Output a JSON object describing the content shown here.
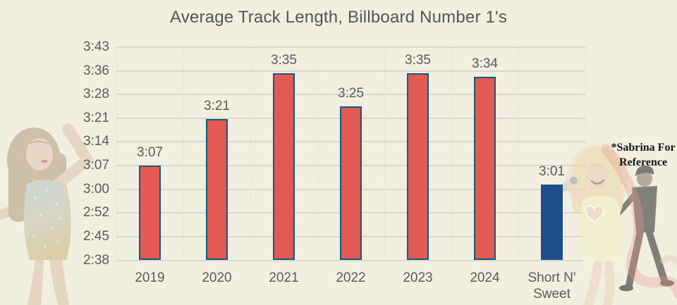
{
  "page": {
    "background_color": "#F0EFE0"
  },
  "chart_data": {
    "type": "bar",
    "title": "Average Track Length, Billboard Number 1's",
    "categories": [
      "2019",
      "2020",
      "2021",
      "2022",
      "2023",
      "2024",
      "Short N' Sweet"
    ],
    "values": [
      "3:07",
      "3:21",
      "3:35",
      "3:25",
      "3:35",
      "3:34",
      "3:01"
    ],
    "values_seconds": [
      187,
      201,
      215,
      205,
      215,
      214,
      181
    ],
    "bar_styles": [
      "default",
      "default",
      "default",
      "default",
      "default",
      "default",
      "highlight"
    ],
    "y_ticks": [
      "3:43",
      "3:36",
      "3:28",
      "3:21",
      "3:14",
      "3:07",
      "3:00",
      "2:52",
      "2:45",
      "2:38"
    ],
    "y_ticks_seconds": [
      223,
      216,
      208,
      201,
      194,
      187,
      180,
      172,
      165,
      158
    ],
    "ylim_seconds": [
      158,
      223
    ],
    "xlabel": "",
    "ylabel": "",
    "grid": true,
    "legend": false,
    "data_labels": true,
    "colors": {
      "bar_fill": "#E35A53",
      "bar_border": "#17587C",
      "highlight_fill": "#1F4E8C",
      "gridline": "#D8D8D3",
      "label_text": "#5B5B5B",
      "title_text": "#555555"
    }
  },
  "annotation": {
    "text": "*Sabrina For\nReference",
    "color": "#161616"
  },
  "images": {
    "left_figure": "taylor-swift-photo",
    "right_figure": "sabrina-carpenter-photo",
    "right_secondary_figure": "man-in-black-photo",
    "ribbon": "red-ribbon-overlay"
  }
}
